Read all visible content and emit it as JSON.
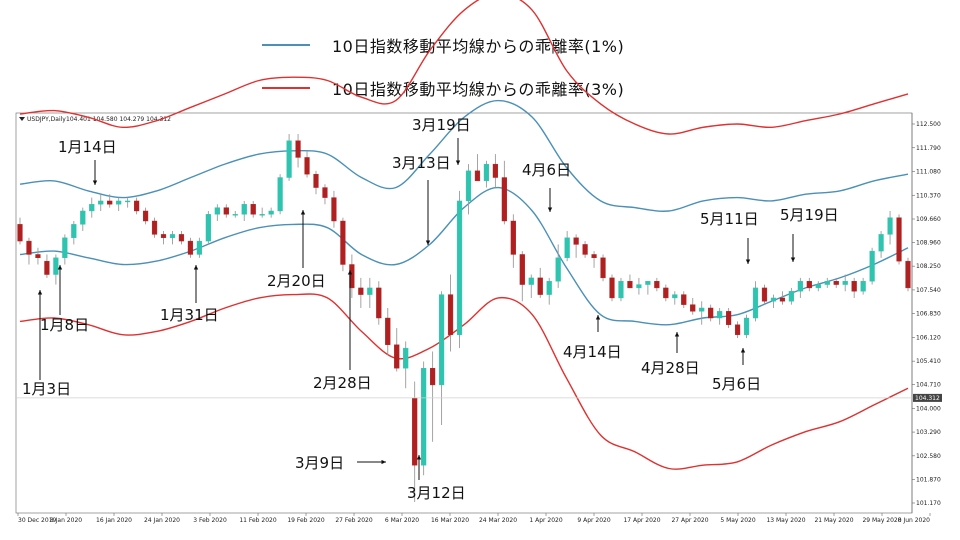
{
  "legend": {
    "items": [
      {
        "label": "10日指数移動平均線からの乖離率(1%)",
        "color": "#4a90b8"
      },
      {
        "label": "10日指数移動平均線からの乖離率(3%)",
        "color": "#e03030"
      }
    ]
  },
  "chart_header": {
    "symbol": "USDJPY,Daily",
    "ohlc": "104.401 104.580 104.279 104.312"
  },
  "colors": {
    "up": "#2ec4b0",
    "down": "#b02020",
    "band1": "#4a90b8",
    "band3": "#e03030",
    "current": "#444444"
  },
  "chart_data": {
    "type": "candlestick",
    "title": "",
    "y_ticks": [
      "112.500",
      "111.790",
      "111.080",
      "110.370",
      "109.660",
      "108.960",
      "108.250",
      "107.540",
      "106.830",
      "106.120",
      "105.410",
      "104.710",
      "104.000",
      "103.290",
      "102.580",
      "101.870",
      "101.170"
    ],
    "ylim": [
      101.0,
      112.8
    ],
    "current_price": "104.312",
    "x_ticks": [
      "30 Dec 2019",
      "8 Jan 2020",
      "16 Jan 2020",
      "24 Jan 2020",
      "3 Feb 2020",
      "11 Feb 2020",
      "19 Feb 2020",
      "27 Feb 2020",
      "6 Mar 2020",
      "16 Mar 2020",
      "24 Mar 2020",
      "1 Apr 2020",
      "9 Apr 2020",
      "17 Apr 2020",
      "27 Apr 2020",
      "5 May 2020",
      "13 May 2020",
      "21 May 2020",
      "29 May 2020",
      "8 Jun 2020"
    ],
    "candles": [
      [
        109.5,
        109.7,
        108.9,
        109.0
      ],
      [
        109.0,
        109.1,
        108.3,
        108.6
      ],
      [
        108.6,
        108.8,
        108.3,
        108.5
      ],
      [
        108.4,
        108.6,
        107.9,
        108.0
      ],
      [
        108.0,
        108.6,
        107.7,
        108.5
      ],
      [
        108.5,
        109.2,
        108.3,
        109.1
      ],
      [
        109.1,
        109.6,
        108.9,
        109.5
      ],
      [
        109.5,
        110.0,
        109.3,
        109.9
      ],
      [
        109.9,
        110.3,
        109.7,
        110.1
      ],
      [
        110.1,
        110.4,
        109.9,
        110.2
      ],
      [
        110.2,
        110.4,
        110.0,
        110.1
      ],
      [
        110.1,
        110.3,
        109.9,
        110.2
      ],
      [
        110.2,
        110.3,
        110.0,
        110.2
      ],
      [
        110.2,
        110.3,
        109.8,
        109.9
      ],
      [
        109.9,
        110.0,
        109.5,
        109.6
      ],
      [
        109.6,
        109.7,
        109.1,
        109.2
      ],
      [
        109.2,
        109.3,
        108.9,
        109.1
      ],
      [
        109.1,
        109.3,
        108.9,
        109.2
      ],
      [
        109.2,
        109.3,
        108.9,
        109.0
      ],
      [
        109.0,
        109.1,
        108.5,
        108.6
      ],
      [
        108.6,
        109.1,
        108.5,
        109.0
      ],
      [
        109.0,
        109.9,
        108.9,
        109.8
      ],
      [
        109.8,
        110.1,
        109.6,
        110.0
      ],
      [
        110.0,
        110.1,
        109.7,
        109.8
      ],
      [
        109.8,
        109.9,
        109.7,
        109.8
      ],
      [
        109.8,
        110.2,
        109.6,
        110.1
      ],
      [
        110.1,
        110.2,
        109.7,
        109.8
      ],
      [
        109.8,
        110.0,
        109.7,
        109.8
      ],
      [
        109.8,
        110.0,
        109.7,
        109.9
      ],
      [
        109.9,
        111.0,
        109.8,
        110.9
      ],
      [
        110.9,
        112.2,
        110.8,
        112.0
      ],
      [
        112.0,
        112.2,
        111.2,
        111.5
      ],
      [
        111.5,
        111.7,
        110.9,
        111.0
      ],
      [
        111.0,
        111.1,
        110.4,
        110.6
      ],
      [
        110.6,
        110.7,
        110.1,
        110.3
      ],
      [
        110.3,
        110.5,
        109.4,
        109.6
      ],
      [
        109.6,
        109.7,
        108.1,
        108.3
      ],
      [
        108.3,
        108.6,
        107.3,
        107.6
      ],
      [
        107.6,
        107.9,
        107.0,
        107.4
      ],
      [
        107.4,
        107.9,
        107.0,
        107.6
      ],
      [
        107.6,
        107.8,
        106.5,
        106.7
      ],
      [
        106.7,
        107.0,
        105.6,
        105.9
      ],
      [
        105.9,
        106.4,
        105.1,
        105.2
      ],
      [
        105.2,
        106.0,
        104.6,
        105.8
      ],
      [
        104.3,
        104.8,
        101.2,
        102.3
      ],
      [
        102.3,
        105.4,
        102.0,
        105.2
      ],
      [
        105.2,
        105.7,
        103.0,
        104.7
      ],
      [
        104.7,
        107.5,
        103.5,
        107.4
      ],
      [
        107.4,
        108.0,
        105.7,
        106.2
      ],
      [
        106.2,
        110.5,
        105.8,
        110.2
      ],
      [
        110.2,
        111.3,
        109.8,
        111.1
      ],
      [
        111.1,
        111.6,
        110.8,
        110.8
      ],
      [
        110.8,
        111.4,
        110.6,
        111.3
      ],
      [
        111.3,
        111.6,
        110.6,
        110.9
      ],
      [
        110.9,
        111.4,
        109.5,
        109.6
      ],
      [
        109.6,
        109.8,
        108.2,
        108.6
      ],
      [
        108.6,
        108.7,
        107.2,
        107.7
      ],
      [
        107.7,
        108.0,
        107.3,
        107.9
      ],
      [
        107.9,
        108.2,
        107.3,
        107.4
      ],
      [
        107.4,
        107.9,
        107.1,
        107.8
      ],
      [
        107.8,
        108.9,
        107.6,
        108.5
      ],
      [
        108.5,
        109.3,
        108.4,
        109.1
      ],
      [
        109.1,
        109.2,
        108.5,
        108.9
      ],
      [
        108.9,
        109.0,
        108.5,
        108.6
      ],
      [
        108.6,
        108.7,
        108.2,
        108.5
      ],
      [
        108.5,
        108.6,
        107.8,
        107.9
      ],
      [
        107.9,
        108.0,
        107.2,
        107.3
      ],
      [
        107.3,
        107.9,
        107.2,
        107.8
      ],
      [
        107.8,
        108.0,
        107.6,
        107.6
      ],
      [
        107.6,
        107.9,
        107.4,
        107.7
      ],
      [
        107.7,
        107.8,
        107.4,
        107.8
      ],
      [
        107.8,
        107.9,
        107.5,
        107.6
      ],
      [
        107.6,
        107.7,
        107.2,
        107.3
      ],
      [
        107.3,
        107.5,
        107.1,
        107.4
      ],
      [
        107.4,
        107.5,
        107.0,
        107.1
      ],
      [
        107.1,
        107.3,
        106.8,
        106.9
      ],
      [
        106.9,
        107.2,
        106.5,
        107.0
      ],
      [
        107.0,
        107.1,
        106.6,
        106.7
      ],
      [
        106.7,
        107.0,
        106.5,
        106.9
      ],
      [
        106.9,
        107.0,
        106.4,
        106.5
      ],
      [
        106.5,
        106.6,
        106.1,
        106.2
      ],
      [
        106.2,
        106.8,
        106.1,
        106.7
      ],
      [
        106.7,
        107.8,
        106.6,
        107.6
      ],
      [
        107.6,
        107.7,
        107.1,
        107.2
      ],
      [
        107.2,
        107.4,
        107.0,
        107.3
      ],
      [
        107.3,
        107.5,
        107.1,
        107.2
      ],
      [
        107.2,
        107.6,
        107.1,
        107.5
      ],
      [
        107.5,
        107.9,
        107.3,
        107.8
      ],
      [
        107.8,
        107.9,
        107.5,
        107.6
      ],
      [
        107.6,
        107.8,
        107.5,
        107.7
      ],
      [
        107.7,
        107.9,
        107.6,
        107.8
      ],
      [
        107.8,
        107.9,
        107.6,
        107.7
      ],
      [
        107.7,
        108.0,
        107.5,
        107.8
      ],
      [
        107.8,
        107.9,
        107.3,
        107.5
      ],
      [
        107.5,
        107.9,
        107.4,
        107.8
      ],
      [
        107.8,
        108.8,
        107.7,
        108.7
      ],
      [
        108.7,
        109.3,
        108.5,
        109.2
      ],
      [
        109.2,
        109.9,
        108.9,
        109.7
      ],
      [
        109.7,
        109.8,
        108.3,
        108.4
      ],
      [
        108.4,
        108.5,
        107.5,
        107.6
      ]
    ],
    "band1_upper": [
      110.7,
      110.8,
      110.5,
      110.3,
      110.5,
      110.9,
      111.3,
      111.6,
      111.7,
      111.6,
      110.9,
      110.6,
      111.6,
      112.7,
      113.2,
      112.7,
      111.2,
      110.2,
      110.0,
      109.9,
      110.2,
      110.3,
      110.2,
      110.4,
      110.5,
      110.8,
      111.0
    ],
    "band1_lower": [
      108.6,
      108.7,
      108.5,
      108.3,
      108.4,
      108.7,
      109.1,
      109.4,
      109.5,
      109.4,
      108.6,
      108.3,
      108.9,
      110.0,
      110.6,
      109.9,
      108.2,
      106.8,
      106.6,
      106.5,
      106.7,
      106.8,
      107.2,
      107.6,
      107.9,
      108.3,
      108.8
    ],
    "band3_upper": [
      112.8,
      112.9,
      112.7,
      112.4,
      112.6,
      113.0,
      113.4,
      113.8,
      113.9,
      113.8,
      113.3,
      113.2,
      114.7,
      115.9,
      116.4,
      115.9,
      114.1,
      113.1,
      112.5,
      112.2,
      112.4,
      112.5,
      112.4,
      112.6,
      112.8,
      113.1,
      113.4
    ],
    "band3_lower": [
      106.6,
      106.7,
      106.5,
      106.2,
      106.3,
      106.6,
      107.0,
      107.3,
      107.4,
      107.3,
      106.3,
      105.5,
      105.8,
      106.5,
      107.3,
      106.8,
      104.9,
      103.2,
      102.7,
      102.2,
      102.3,
      102.4,
      102.9,
      103.3,
      103.6,
      104.1,
      104.6
    ],
    "annotations": [
      {
        "label": "1月3日",
        "arrow": "up"
      },
      {
        "label": "1月8日",
        "arrow": "up"
      },
      {
        "label": "1月14日",
        "arrow": "down"
      },
      {
        "label": "1月31日",
        "arrow": "up"
      },
      {
        "label": "2月20日",
        "arrow": "up"
      },
      {
        "label": "2月28日",
        "arrow": "up"
      },
      {
        "label": "3月9日",
        "arrow": "right"
      },
      {
        "label": "3月12日",
        "arrow": "up"
      },
      {
        "label": "3月13日",
        "arrow": "down"
      },
      {
        "label": "3月19日",
        "arrow": "down"
      },
      {
        "label": "4月6日",
        "arrow": "down"
      },
      {
        "label": "4月14日",
        "arrow": "up"
      },
      {
        "label": "4月28日",
        "arrow": "up"
      },
      {
        "label": "5月6日",
        "arrow": "up"
      },
      {
        "label": "5月11日",
        "arrow": "up"
      },
      {
        "label": "5月19日",
        "arrow": "down"
      }
    ]
  }
}
